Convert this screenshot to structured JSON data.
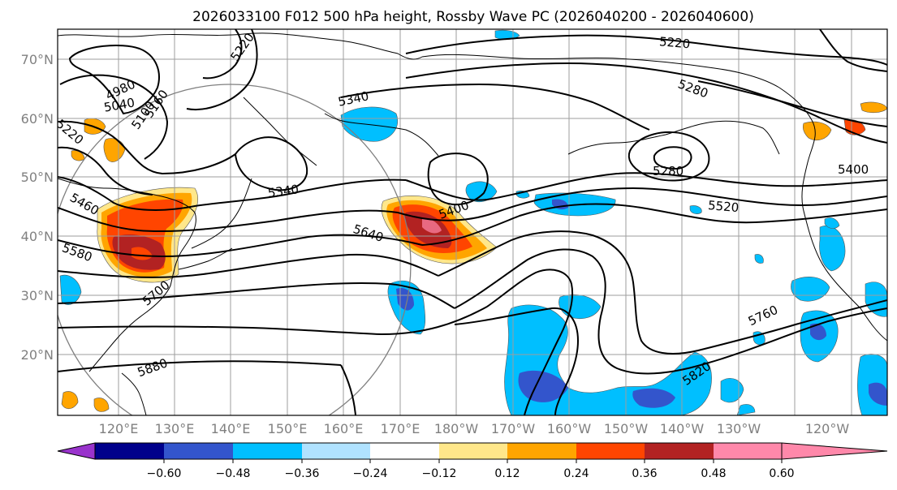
{
  "title": "2026033100 F012 500 hPa height, Rossby Wave PC (2026040200 - 2026040600)",
  "lat_labels": [
    "70°N",
    "60°N",
    "50°N",
    "40°N",
    "30°N",
    "20°N"
  ],
  "lon_labels": [
    "120°E",
    "130°E",
    "140°E",
    "150°E",
    "160°E",
    "170°E",
    "180°W",
    "170°W",
    "160°W",
    "150°W",
    "140°W",
    "130°W",
    "120°W"
  ],
  "contour_labels": [
    "4980",
    "5040",
    "5100",
    "5160",
    "5220",
    "5220",
    "5220",
    "5280",
    "5280",
    "5340",
    "5340",
    "5400",
    "5400",
    "5460",
    "5520",
    "5580",
    "5640",
    "5700",
    "5760",
    "5820",
    "5880"
  ],
  "colorbar": {
    "ticks": [
      "−0.60",
      "−0.48",
      "−0.36",
      "−0.24",
      "−0.12",
      "0.12",
      "0.24",
      "0.36",
      "0.48",
      "0.60"
    ],
    "colors": [
      "#9933cc",
      "#00008b",
      "#3355cc",
      "#00bfff",
      "#b0e2ff",
      "#ffffff",
      "#ffe78a",
      "#ffa500",
      "#ff4500",
      "#b22222",
      "#ff88aa"
    ]
  }
}
